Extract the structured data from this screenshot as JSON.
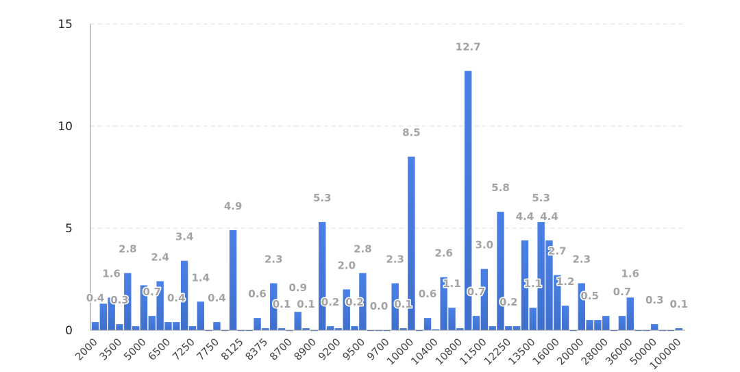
{
  "chart_data": {
    "type": "bar",
    "title": "",
    "xlabel": "",
    "ylabel": "",
    "ylim": [
      0,
      15
    ],
    "yticks": [
      0,
      5,
      10,
      15
    ],
    "grid": true,
    "bar_color": "#4a7fe2",
    "label_color": "#a3a3a3",
    "tick_labels": [
      "2000",
      "3500",
      "5000",
      "6500",
      "7250",
      "7750",
      "8125",
      "8375",
      "8700",
      "8900",
      "9200",
      "9500",
      "9700",
      "10000",
      "10400",
      "10800",
      "11500",
      "12250",
      "13500",
      "16000",
      "20000",
      "28000",
      "36000",
      "50000",
      "100000"
    ],
    "tick_every": 3,
    "values": [
      0.4,
      1.3,
      1.6,
      0.3,
      2.8,
      0.2,
      2.2,
      0.7,
      2.4,
      0.4,
      0.4,
      3.4,
      0.2,
      1.4,
      0.0,
      0.4,
      0.0,
      4.9,
      0.0,
      0.0,
      0.6,
      0.1,
      2.3,
      0.1,
      0.0,
      0.9,
      0.1,
      0.0,
      5.3,
      0.2,
      0.1,
      2.0,
      0.2,
      2.8,
      0.0,
      0.0,
      0.0,
      2.3,
      0.1,
      8.5,
      0.0,
      0.6,
      0.05,
      2.6,
      1.1,
      0.1,
      12.7,
      0.7,
      3.0,
      0.2,
      5.8,
      0.2,
      0.2,
      4.4,
      1.1,
      5.3,
      4.4,
      2.7,
      1.2,
      0.0,
      2.3,
      0.5,
      0.5,
      0.7,
      0.0,
      0.7,
      1.6,
      0.0,
      0.0,
      0.3,
      0.0,
      0.0,
      0.1
    ],
    "data_labels": [
      "0.4",
      "",
      "1.6",
      "0.3",
      "2.8",
      "",
      "",
      "0.7",
      "2.4",
      "",
      "0.4",
      "3.4",
      "",
      "1.4",
      "",
      "0.4",
      "",
      "4.9",
      "",
      "",
      "0.6",
      "",
      "2.3",
      "0.1",
      "",
      "0.9",
      "0.1",
      "",
      "5.3",
      "0.2",
      "",
      "2.0",
      "0.2",
      "2.8",
      "",
      "0.0",
      "",
      "2.3",
      "0.1",
      "8.5",
      "",
      "0.6",
      "",
      "2.6",
      "1.1",
      "",
      "12.7",
      "0.7",
      "3.0",
      "",
      "5.8",
      "0.2",
      "",
      "4.4",
      "1.1",
      "5.3",
      "4.4",
      "2.7",
      "1.2",
      "",
      "2.3",
      "0.5",
      "",
      "",
      "",
      "0.7",
      "1.6",
      "",
      "",
      "0.3",
      "",
      "",
      "0.1"
    ]
  }
}
